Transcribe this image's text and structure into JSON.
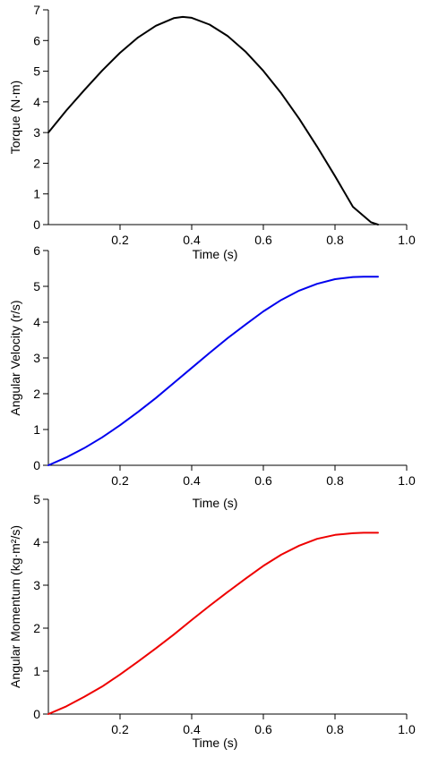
{
  "chart_data": [
    {
      "type": "line",
      "xlabel": "Time (s)",
      "ylabel": "Torque (N·m)",
      "xlim": [
        0,
        1.0
      ],
      "ylim": [
        0,
        7
      ],
      "xticks": [
        0.2,
        0.4,
        0.6,
        0.8,
        1.0
      ],
      "xtick_labels": [
        "0.2",
        "0.4",
        "0.6",
        "0.8",
        "1.0"
      ],
      "yticks": [
        0,
        1,
        2,
        3,
        4,
        5,
        6,
        7
      ],
      "ytick_labels": [
        "0",
        "1",
        "2",
        "3",
        "4",
        "5",
        "6",
        "7"
      ],
      "grid": false,
      "series": [
        {
          "color": "#000000",
          "x": [
            0,
            0.05,
            0.1,
            0.15,
            0.2,
            0.25,
            0.3,
            0.35,
            0.375,
            0.4,
            0.45,
            0.5,
            0.55,
            0.6,
            0.65,
            0.7,
            0.75,
            0.8,
            0.85,
            0.9,
            0.92
          ],
          "y": [
            3.0,
            3.72,
            4.38,
            5.02,
            5.6,
            6.1,
            6.48,
            6.73,
            6.77,
            6.74,
            6.52,
            6.15,
            5.64,
            5.01,
            4.28,
            3.45,
            2.54,
            1.58,
            0.58,
            0.08,
            0.0
          ]
        }
      ]
    },
    {
      "type": "line",
      "xlabel": "Time (s)",
      "ylabel": "Angular Velocity (r/s)",
      "xlim": [
        0,
        1.0
      ],
      "ylim": [
        0,
        6
      ],
      "xticks": [
        0.2,
        0.4,
        0.6,
        0.8,
        1.0
      ],
      "xtick_labels": [
        "0.2",
        "0.4",
        "0.6",
        "0.8",
        "1.0"
      ],
      "yticks": [
        0,
        1,
        2,
        3,
        4,
        5,
        6
      ],
      "ytick_labels": [
        "0",
        "1",
        "2",
        "3",
        "4",
        "5",
        "6"
      ],
      "grid": false,
      "series": [
        {
          "color": "#0000ee",
          "x": [
            0,
            0.05,
            0.1,
            0.15,
            0.2,
            0.25,
            0.3,
            0.35,
            0.4,
            0.45,
            0.5,
            0.55,
            0.6,
            0.65,
            0.7,
            0.75,
            0.8,
            0.85,
            0.88,
            0.92
          ],
          "y": [
            0.0,
            0.22,
            0.48,
            0.78,
            1.12,
            1.49,
            1.88,
            2.3,
            2.72,
            3.14,
            3.55,
            3.93,
            4.3,
            4.62,
            4.88,
            5.07,
            5.2,
            5.26,
            5.27,
            5.27
          ]
        }
      ]
    },
    {
      "type": "line",
      "xlabel": "Time (s)",
      "ylabel": "Angular Momentum (kg·m²/s)",
      "xlim": [
        0,
        1.0
      ],
      "ylim": [
        0,
        5
      ],
      "xticks": [
        0.2,
        0.4,
        0.6,
        0.8,
        1.0
      ],
      "xtick_labels": [
        "0.2",
        "0.4",
        "0.6",
        "0.8",
        "1.0"
      ],
      "yticks": [
        0,
        1,
        2,
        3,
        4,
        5
      ],
      "ytick_labels": [
        "0",
        "1",
        "2",
        "3",
        "4",
        "5"
      ],
      "grid": false,
      "series": [
        {
          "color": "#ee0000",
          "x": [
            0,
            0.05,
            0.1,
            0.15,
            0.2,
            0.25,
            0.3,
            0.35,
            0.4,
            0.45,
            0.5,
            0.55,
            0.6,
            0.65,
            0.7,
            0.75,
            0.8,
            0.85,
            0.88,
            0.92
          ],
          "y": [
            0.0,
            0.18,
            0.4,
            0.64,
            0.92,
            1.22,
            1.53,
            1.85,
            2.19,
            2.52,
            2.84,
            3.15,
            3.45,
            3.71,
            3.92,
            4.08,
            4.17,
            4.21,
            4.22,
            4.22
          ]
        }
      ]
    }
  ]
}
